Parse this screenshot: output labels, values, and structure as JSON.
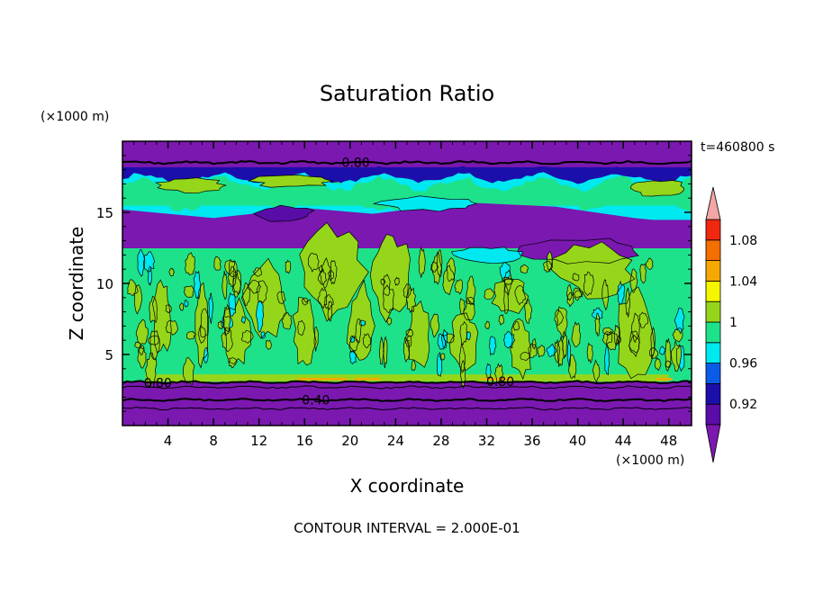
{
  "chart_data": {
    "type": "heatmap",
    "title": "Saturation Ratio",
    "xlabel": "X coordinate",
    "ylabel": "Z coordinate",
    "x_unit": "(×1000 m)",
    "y_unit": "(×1000 m)",
    "time_label": "t=460800 s",
    "footer": "CONTOUR INTERVAL = 2.000E-01",
    "xlim": [
      0,
      50
    ],
    "ylim": [
      0,
      20
    ],
    "x_ticks": [
      4,
      8,
      12,
      16,
      20,
      24,
      28,
      32,
      36,
      40,
      44,
      48
    ],
    "y_ticks": [
      5,
      10,
      15
    ],
    "x_tick_labels": [
      "4",
      "8",
      "12",
      "16",
      "20",
      "24",
      "28",
      "32",
      "36",
      "40",
      "44",
      "48"
    ],
    "y_tick_labels": [
      "5",
      "10",
      "15"
    ],
    "colorbar": {
      "levels": [
        0.9,
        0.92,
        0.94,
        0.96,
        0.98,
        1.0,
        1.02,
        1.04,
        1.06,
        1.08,
        1.1
      ],
      "labels": [
        "0.92",
        "0.96",
        "1",
        "1.04",
        "1.08"
      ],
      "label_levels": [
        0.92,
        0.96,
        1.0,
        1.04,
        1.08
      ],
      "colors": [
        "#5a0ca8",
        "#1c0eaa",
        "#0a5be8",
        "#00e8f0",
        "#1ee28a",
        "#96d61a",
        "#f5f500",
        "#f5a800",
        "#f56e00",
        "#f02810"
      ],
      "under_color": "#7a18b0",
      "over_color": "#f2a6a6"
    },
    "contour_labels": [
      {
        "text": "0.80",
        "x": 20.5,
        "y": 18.5
      },
      {
        "text": "0.80",
        "x": 3.1,
        "y": 3.0
      },
      {
        "text": "0.80",
        "x": 33.2,
        "y": 3.1
      },
      {
        "text": "0.40",
        "x": 17.0,
        "y": 1.8
      }
    ],
    "field": {
      "bands": [
        {
          "from": 0,
          "to": 1.2,
          "level": "under"
        },
        {
          "from": 1.2,
          "to": 2.4,
          "level": "under"
        },
        {
          "from": 2.4,
          "to": 3.1,
          "level": "under"
        },
        {
          "from": 3.1,
          "to": 3.5,
          "level": 0.98
        },
        {
          "from": 3.5,
          "to": 11.5,
          "level": 0.98
        },
        {
          "from": 11.5,
          "to": 12.5,
          "level": 0.98
        },
        {
          "from": 12.5,
          "to": 14.5,
          "level": "under"
        },
        {
          "from": 14.5,
          "to": 15.5,
          "level": 0.96
        },
        {
          "from": 15.5,
          "to": 17.5,
          "level": 0.98
        },
        {
          "from": 17.5,
          "to": 18.2,
          "level": 0.92
        },
        {
          "from": 18.2,
          "to": 20,
          "level": "under"
        }
      ]
    }
  }
}
